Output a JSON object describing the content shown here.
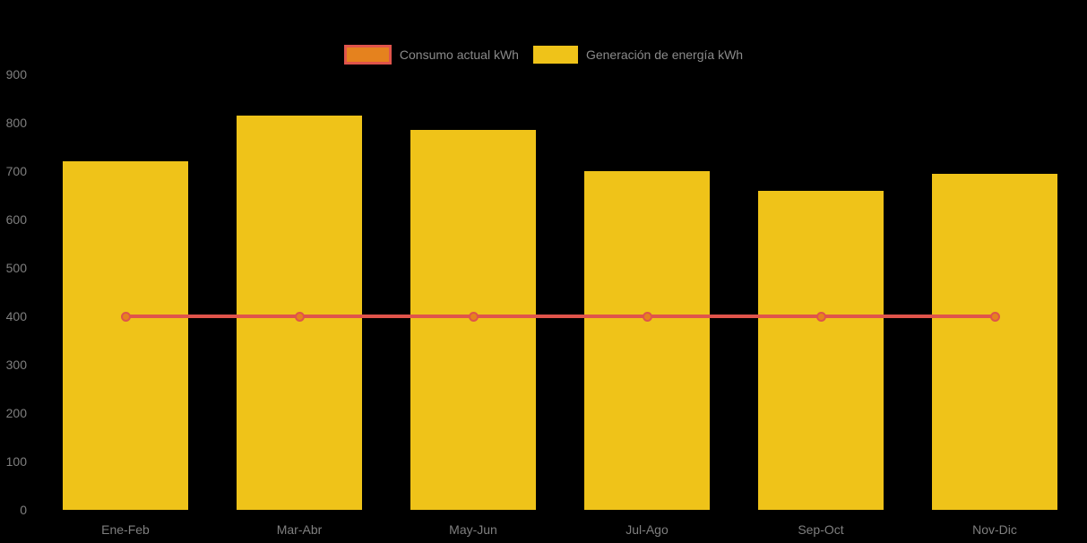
{
  "chart_data": {
    "type": "bar",
    "title": "",
    "xlabel": "",
    "ylabel": "",
    "categories": [
      "Ene-Feb",
      "Mar-Abr",
      "May-Jun",
      "Jul-Ago",
      "Sep-Oct",
      "Nov-Dic"
    ],
    "series": [
      {
        "name": "Consumo actual kWh",
        "type": "line",
        "values": [
          400,
          400,
          400,
          400,
          400,
          400
        ],
        "line_color": "#e0544b",
        "marker_fill": "#e5821e"
      },
      {
        "name": "Generación de energía kWh",
        "type": "bar",
        "values": [
          720,
          815,
          785,
          700,
          660,
          695
        ],
        "color": "#efc319"
      }
    ],
    "ylim": [
      0,
      900
    ],
    "ytick_step": 100,
    "yticks": [
      0,
      100,
      200,
      300,
      400,
      500,
      600,
      700,
      800,
      900
    ],
    "legend_position": "top",
    "grid": false,
    "background_color": "#000000",
    "tick_text_color": "#7f7f7f",
    "legend_text_color": "#8a8a8a"
  }
}
